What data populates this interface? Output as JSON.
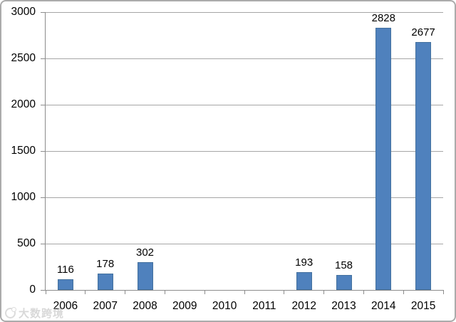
{
  "chart_data": {
    "type": "bar",
    "categories": [
      "2006",
      "2007",
      "2008",
      "2009",
      "2010",
      "2011",
      "2012",
      "2013",
      "2014",
      "2015"
    ],
    "values": [
      116,
      178,
      302,
      0,
      0,
      0,
      193,
      158,
      2828,
      2677
    ],
    "data_labels": [
      "116",
      "178",
      "302",
      "",
      "",
      "",
      "193",
      "158",
      "2828",
      "2677"
    ],
    "title": "",
    "xlabel": "",
    "ylabel": "",
    "ylim": [
      0,
      3000
    ],
    "yticks": [
      0,
      500,
      1000,
      1500,
      2000,
      2500,
      3000
    ],
    "grid": true,
    "legend": false,
    "bar_color": "#4f81bd",
    "bar_border_color": "#44719e",
    "gridline_color": "#a6a6a6",
    "axis_color": "#8c8c8c",
    "tick_color": "#8c8c8c",
    "label_color": "#000000"
  },
  "watermark": {
    "logo": "circle-logo",
    "text": "大数跨境"
  }
}
